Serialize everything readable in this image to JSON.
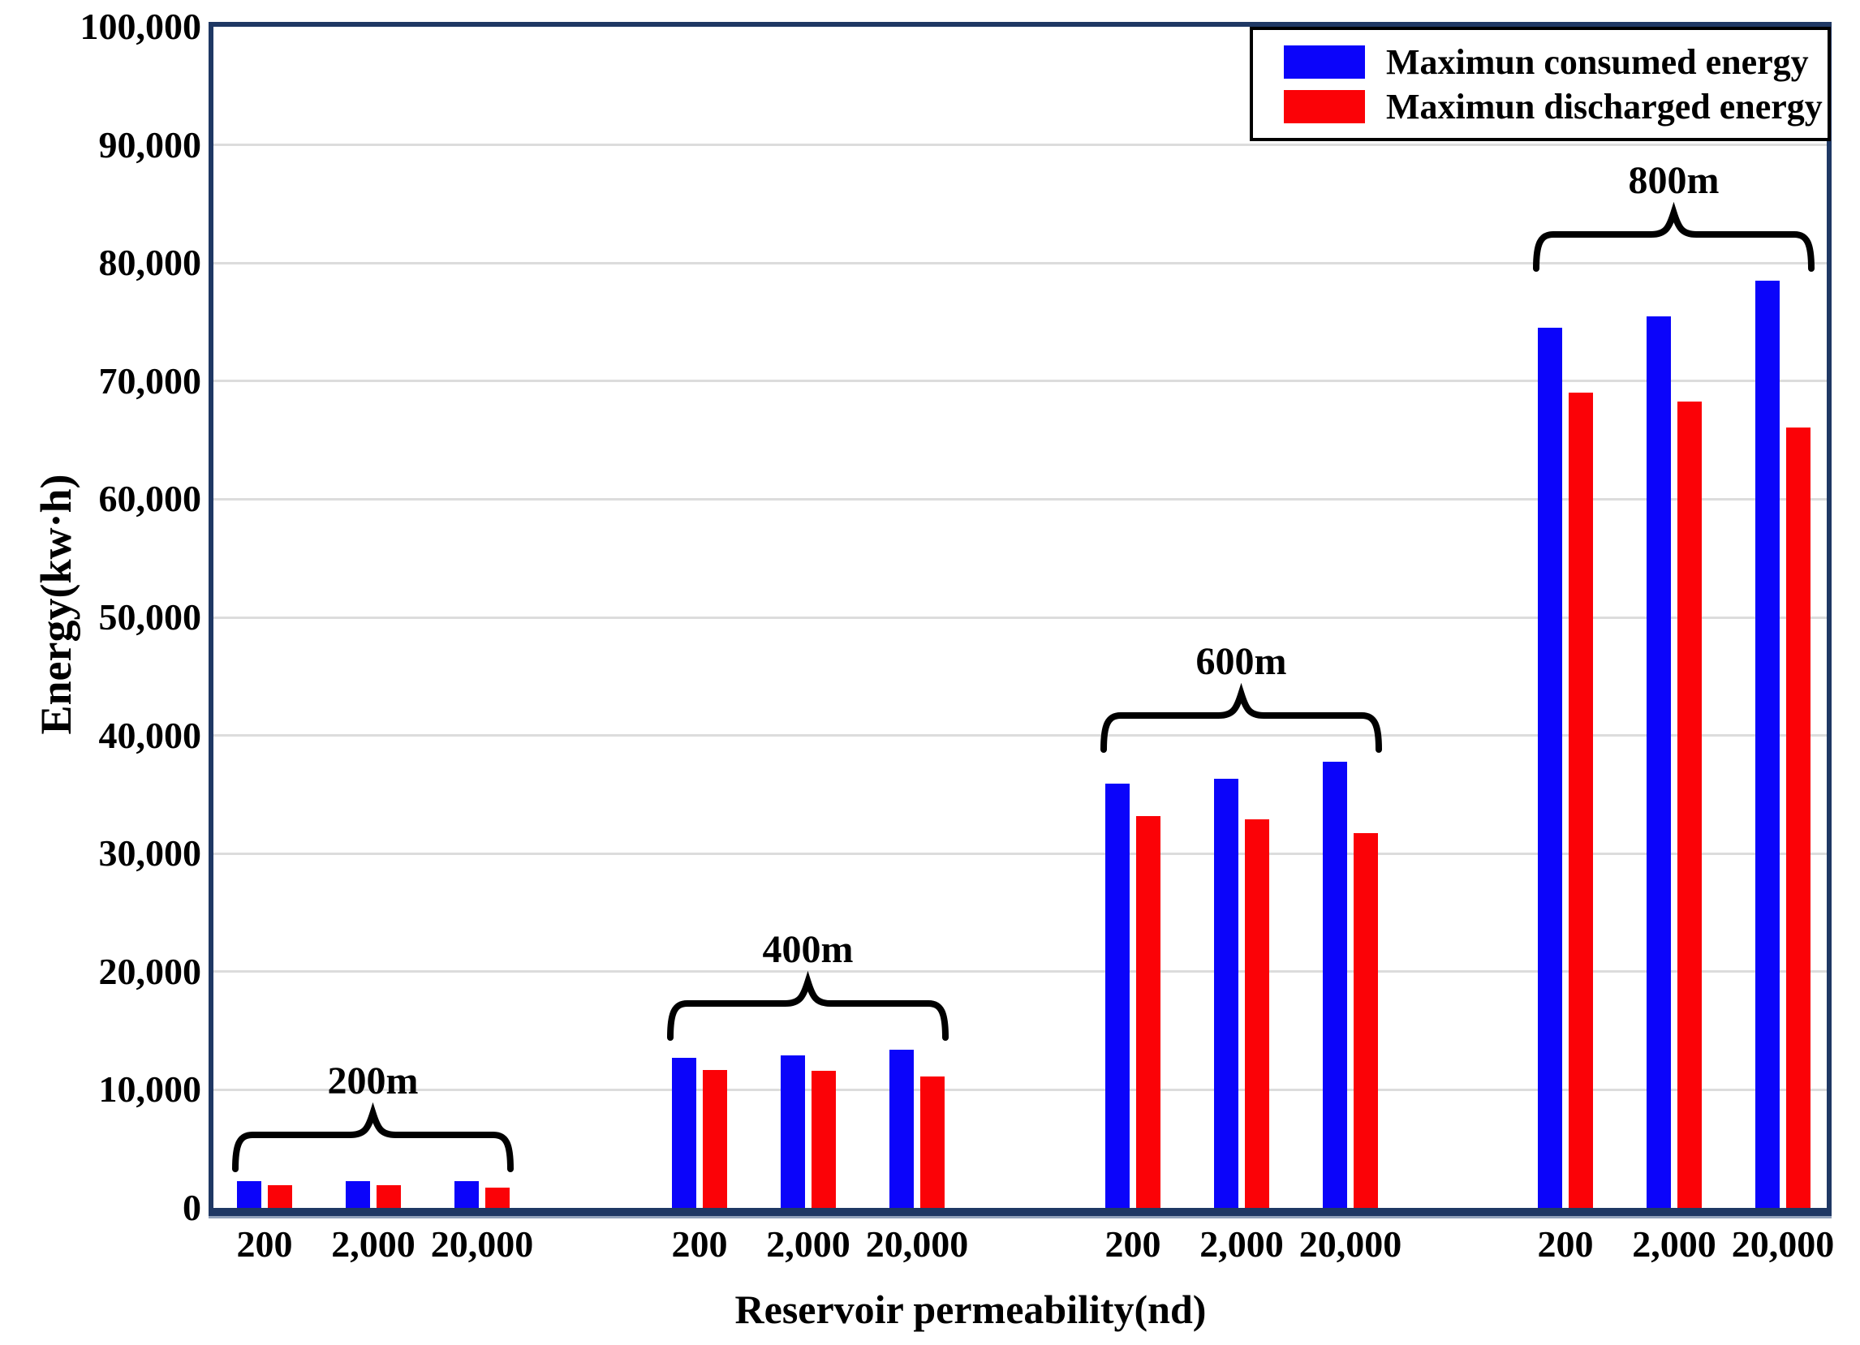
{
  "chart_data": {
    "type": "bar",
    "title": "",
    "xlabel": "Reservoir permeability(nd)",
    "ylabel": "Energy(kw·h)",
    "ylim": [
      0,
      100000
    ],
    "ytick_interval": 10000,
    "ytick_labels": [
      "0",
      "10,000",
      "20,000",
      "30,000",
      "40,000",
      "50,000",
      "60,000",
      "70,000",
      "80,000",
      "90,000",
      "100,000"
    ],
    "grid": true,
    "legend_position": "top-right-inside",
    "series": [
      {
        "name": "Maximun consumed energy",
        "key": "consumed",
        "color": "#0b04fa"
      },
      {
        "name": "Maximun discharged energy",
        "key": "discharged",
        "color": "#fb0207"
      }
    ],
    "groups": [
      {
        "label": "200m",
        "categories": [
          "200",
          "2,000",
          "20,000"
        ],
        "values": {
          "consumed": [
            2300,
            2300,
            2250
          ],
          "discharged": [
            1950,
            1900,
            1750
          ]
        }
      },
      {
        "label": "400m",
        "categories": [
          "200",
          "2,000",
          "20,000"
        ],
        "values": {
          "consumed": [
            12700,
            12900,
            13400
          ],
          "discharged": [
            11700,
            11600,
            11100
          ]
        }
      },
      {
        "label": "600m",
        "categories": [
          "200",
          "2,000",
          "20,000"
        ],
        "values": {
          "consumed": [
            35900,
            36300,
            37800
          ],
          "discharged": [
            33200,
            32900,
            31700
          ]
        }
      },
      {
        "label": "800m",
        "categories": [
          "200",
          "2,000",
          "20,000"
        ],
        "values": {
          "consumed": [
            74500,
            75500,
            78500
          ],
          "discharged": [
            69000,
            68300,
            66100
          ]
        }
      }
    ],
    "colors": {
      "axis_border": "#1f3864",
      "gridline": "#dcdcdc",
      "legend_border": "#000000",
      "text": "#000000"
    }
  }
}
